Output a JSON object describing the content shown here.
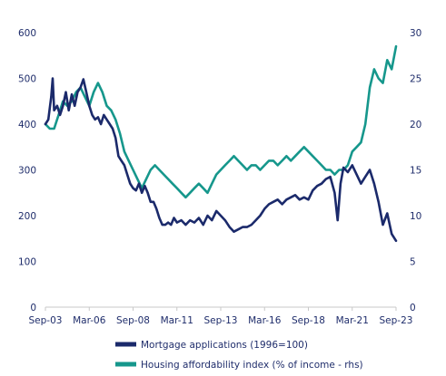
{
  "chart_data": {
    "type": "line",
    "x_ticks": [
      "Sep-03",
      "Mar-06",
      "Sep-08",
      "Mar-11",
      "Sep-13",
      "Mar-16",
      "Sep-18",
      "Mar-21",
      "Sep-23"
    ],
    "x_range": [
      "2003-09",
      "2023-09"
    ],
    "y_left": {
      "ticks": [
        0,
        100,
        200,
        300,
        400,
        500,
        600
      ],
      "range": [
        0,
        600
      ]
    },
    "y_right": {
      "ticks": [
        0,
        5,
        10,
        15,
        20,
        25,
        30
      ],
      "range": [
        0,
        30
      ]
    },
    "grid": false,
    "legend_position": "bottom",
    "series": [
      {
        "name": "Mortgage applications (1996=100)",
        "axis": "left",
        "color": "#1b2a6b",
        "points": [
          [
            "2003-09",
            400
          ],
          [
            "2003-11",
            410
          ],
          [
            "2004-01",
            460
          ],
          [
            "2004-02",
            500
          ],
          [
            "2004-03",
            430
          ],
          [
            "2004-05",
            440
          ],
          [
            "2004-07",
            420
          ],
          [
            "2004-09",
            440
          ],
          [
            "2004-11",
            470
          ],
          [
            "2005-01",
            430
          ],
          [
            "2005-03",
            465
          ],
          [
            "2005-05",
            440
          ],
          [
            "2005-07",
            470
          ],
          [
            "2005-09",
            480
          ],
          [
            "2005-11",
            498
          ],
          [
            "2006-01",
            470
          ],
          [
            "2006-03",
            440
          ],
          [
            "2006-05",
            420
          ],
          [
            "2006-07",
            410
          ],
          [
            "2006-09",
            415
          ],
          [
            "2006-11",
            400
          ],
          [
            "2007-01",
            420
          ],
          [
            "2007-03",
            410
          ],
          [
            "2007-05",
            400
          ],
          [
            "2007-07",
            390
          ],
          [
            "2007-09",
            370
          ],
          [
            "2007-11",
            330
          ],
          [
            "2008-01",
            320
          ],
          [
            "2008-03",
            310
          ],
          [
            "2008-05",
            290
          ],
          [
            "2008-07",
            270
          ],
          [
            "2008-09",
            260
          ],
          [
            "2008-11",
            255
          ],
          [
            "2009-01",
            270
          ],
          [
            "2009-03",
            250
          ],
          [
            "2009-05",
            265
          ],
          [
            "2009-07",
            250
          ],
          [
            "2009-09",
            230
          ],
          [
            "2009-11",
            230
          ],
          [
            "2010-01",
            215
          ],
          [
            "2010-03",
            195
          ],
          [
            "2010-05",
            180
          ],
          [
            "2010-07",
            180
          ],
          [
            "2010-09",
            185
          ],
          [
            "2010-11",
            180
          ],
          [
            "2011-01",
            195
          ],
          [
            "2011-03",
            185
          ],
          [
            "2011-06",
            190
          ],
          [
            "2011-09",
            180
          ],
          [
            "2011-12",
            190
          ],
          [
            "2012-03",
            185
          ],
          [
            "2012-06",
            195
          ],
          [
            "2012-09",
            180
          ],
          [
            "2012-12",
            200
          ],
          [
            "2013-03",
            190
          ],
          [
            "2013-06",
            210
          ],
          [
            "2013-09",
            200
          ],
          [
            "2013-12",
            190
          ],
          [
            "2014-03",
            175
          ],
          [
            "2014-06",
            165
          ],
          [
            "2014-09",
            170
          ],
          [
            "2014-12",
            175
          ],
          [
            "2015-03",
            175
          ],
          [
            "2015-06",
            180
          ],
          [
            "2015-09",
            190
          ],
          [
            "2015-12",
            200
          ],
          [
            "2016-03",
            215
          ],
          [
            "2016-06",
            225
          ],
          [
            "2016-09",
            230
          ],
          [
            "2016-12",
            235
          ],
          [
            "2017-03",
            225
          ],
          [
            "2017-06",
            235
          ],
          [
            "2017-09",
            240
          ],
          [
            "2017-12",
            245
          ],
          [
            "2018-03",
            235
          ],
          [
            "2018-06",
            240
          ],
          [
            "2018-09",
            235
          ],
          [
            "2018-12",
            255
          ],
          [
            "2019-03",
            265
          ],
          [
            "2019-06",
            270
          ],
          [
            "2019-09",
            280
          ],
          [
            "2019-12",
            285
          ],
          [
            "2020-03",
            250
          ],
          [
            "2020-05",
            190
          ],
          [
            "2020-07",
            270
          ],
          [
            "2020-09",
            305
          ],
          [
            "2020-12",
            295
          ],
          [
            "2021-03",
            310
          ],
          [
            "2021-06",
            290
          ],
          [
            "2021-09",
            270
          ],
          [
            "2021-12",
            285
          ],
          [
            "2022-03",
            300
          ],
          [
            "2022-06",
            270
          ],
          [
            "2022-09",
            230
          ],
          [
            "2022-12",
            180
          ],
          [
            "2023-03",
            205
          ],
          [
            "2023-06",
            160
          ],
          [
            "2023-09",
            145
          ]
        ]
      },
      {
        "name": "Housing affordability index (% of income - rhs)",
        "axis": "right",
        "color": "#16978c",
        "points": [
          [
            "2003-09",
            20
          ],
          [
            "2003-12",
            19.5
          ],
          [
            "2004-03",
            19.5
          ],
          [
            "2004-06",
            21
          ],
          [
            "2004-09",
            22.5
          ],
          [
            "2004-12",
            22
          ],
          [
            "2005-03",
            22.5
          ],
          [
            "2005-06",
            23.5
          ],
          [
            "2005-09",
            24
          ],
          [
            "2005-12",
            23
          ],
          [
            "2006-03",
            22
          ],
          [
            "2006-06",
            23.5
          ],
          [
            "2006-09",
            24.5
          ],
          [
            "2006-12",
            23.5
          ],
          [
            "2007-03",
            22
          ],
          [
            "2007-06",
            21.5
          ],
          [
            "2007-09",
            20.5
          ],
          [
            "2007-12",
            19
          ],
          [
            "2008-03",
            17
          ],
          [
            "2008-06",
            16
          ],
          [
            "2008-09",
            15
          ],
          [
            "2008-12",
            14
          ],
          [
            "2009-03",
            13
          ],
          [
            "2009-06",
            14
          ],
          [
            "2009-09",
            15
          ],
          [
            "2009-12",
            15.5
          ],
          [
            "2010-03",
            15
          ],
          [
            "2010-06",
            14.5
          ],
          [
            "2010-09",
            14
          ],
          [
            "2010-12",
            13.5
          ],
          [
            "2011-03",
            13
          ],
          [
            "2011-06",
            12.5
          ],
          [
            "2011-09",
            12
          ],
          [
            "2011-12",
            12.5
          ],
          [
            "2012-03",
            13
          ],
          [
            "2012-06",
            13.5
          ],
          [
            "2012-09",
            13
          ],
          [
            "2012-12",
            12.5
          ],
          [
            "2013-03",
            13.5
          ],
          [
            "2013-06",
            14.5
          ],
          [
            "2013-09",
            15
          ],
          [
            "2013-12",
            15.5
          ],
          [
            "2014-03",
            16
          ],
          [
            "2014-06",
            16.5
          ],
          [
            "2014-09",
            16
          ],
          [
            "2014-12",
            15.5
          ],
          [
            "2015-03",
            15
          ],
          [
            "2015-06",
            15.5
          ],
          [
            "2015-09",
            15.5
          ],
          [
            "2015-12",
            15
          ],
          [
            "2016-03",
            15.5
          ],
          [
            "2016-06",
            16
          ],
          [
            "2016-09",
            16
          ],
          [
            "2016-12",
            15.5
          ],
          [
            "2017-03",
            16
          ],
          [
            "2017-06",
            16.5
          ],
          [
            "2017-09",
            16
          ],
          [
            "2017-12",
            16.5
          ],
          [
            "2018-03",
            17
          ],
          [
            "2018-06",
            17.5
          ],
          [
            "2018-09",
            17
          ],
          [
            "2018-12",
            16.5
          ],
          [
            "2019-03",
            16
          ],
          [
            "2019-06",
            15.5
          ],
          [
            "2019-09",
            15
          ],
          [
            "2019-12",
            15
          ],
          [
            "2020-03",
            14.5
          ],
          [
            "2020-06",
            15
          ],
          [
            "2020-09",
            15
          ],
          [
            "2020-12",
            15.5
          ],
          [
            "2021-03",
            17
          ],
          [
            "2021-06",
            17.5
          ],
          [
            "2021-09",
            18
          ],
          [
            "2021-12",
            20
          ],
          [
            "2022-03",
            24
          ],
          [
            "2022-06",
            26
          ],
          [
            "2022-09",
            25
          ],
          [
            "2022-12",
            24.5
          ],
          [
            "2023-03",
            27
          ],
          [
            "2023-06",
            26
          ],
          [
            "2023-09",
            28.5
          ]
        ]
      }
    ]
  }
}
